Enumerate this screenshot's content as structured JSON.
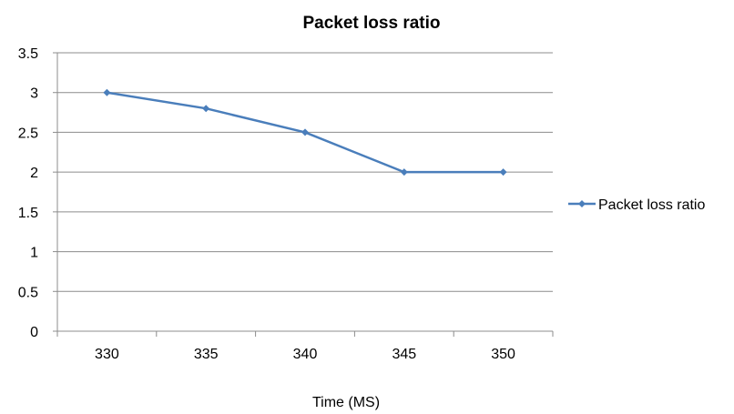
{
  "chart_data": {
    "type": "line",
    "title": "Packet loss ratio",
    "xlabel": "Time (MS)",
    "ylabel": "",
    "categories": [
      "330",
      "335",
      "340",
      "345",
      "350"
    ],
    "series": [
      {
        "name": "Packet loss ratio",
        "values": [
          3,
          2.8,
          2.5,
          2,
          2
        ]
      }
    ],
    "ylim": [
      0,
      3.5
    ],
    "yticks": [
      "0",
      "0.5",
      "1",
      "1.5",
      "2",
      "2.5",
      "3",
      "3.5"
    ],
    "grid": true,
    "legend_position": "right",
    "colors": {
      "series": "#4a7ebb",
      "grid": "#8c8c8c",
      "axis": "#8c8c8c"
    }
  }
}
